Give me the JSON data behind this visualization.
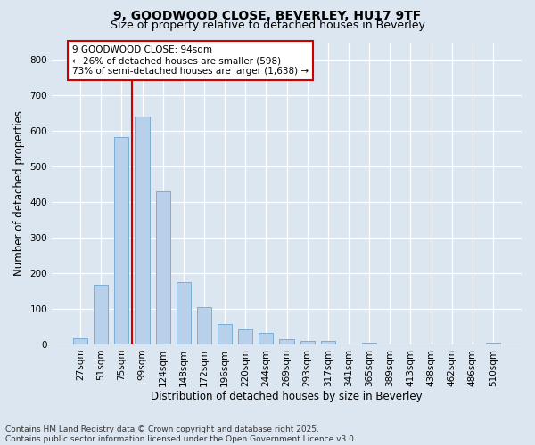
{
  "title1": "9, GOODWOOD CLOSE, BEVERLEY, HU17 9TF",
  "title2": "Size of property relative to detached houses in Beverley",
  "xlabel": "Distribution of detached houses by size in Beverley",
  "ylabel": "Number of detached properties",
  "categories": [
    "27sqm",
    "51sqm",
    "75sqm",
    "99sqm",
    "124sqm",
    "148sqm",
    "172sqm",
    "196sqm",
    "220sqm",
    "244sqm",
    "269sqm",
    "293sqm",
    "317sqm",
    "341sqm",
    "365sqm",
    "389sqm",
    "413sqm",
    "438sqm",
    "462sqm",
    "486sqm",
    "510sqm"
  ],
  "values": [
    18,
    168,
    583,
    641,
    430,
    175,
    105,
    58,
    42,
    32,
    16,
    11,
    9,
    0,
    6,
    0,
    0,
    0,
    0,
    0,
    5
  ],
  "bar_color": "#b8d0ea",
  "bar_edge_color": "#7aaed6",
  "vline_x": 2.5,
  "vline_color": "#cc0000",
  "annotation_text": "9 GOODWOOD CLOSE: 94sqm\n← 26% of detached houses are smaller (598)\n73% of semi-detached houses are larger (1,638) →",
  "annotation_box_facecolor": "#ffffff",
  "annotation_box_edgecolor": "#cc0000",
  "ylim": [
    0,
    850
  ],
  "yticks": [
    0,
    100,
    200,
    300,
    400,
    500,
    600,
    700,
    800
  ],
  "bg_color": "#dce6f0",
  "footer": "Contains HM Land Registry data © Crown copyright and database right 2025.\nContains public sector information licensed under the Open Government Licence v3.0.",
  "title_fontsize": 10,
  "subtitle_fontsize": 9,
  "axis_label_fontsize": 8.5,
  "tick_fontsize": 7.5,
  "annotation_fontsize": 7.5,
  "footer_fontsize": 6.5
}
